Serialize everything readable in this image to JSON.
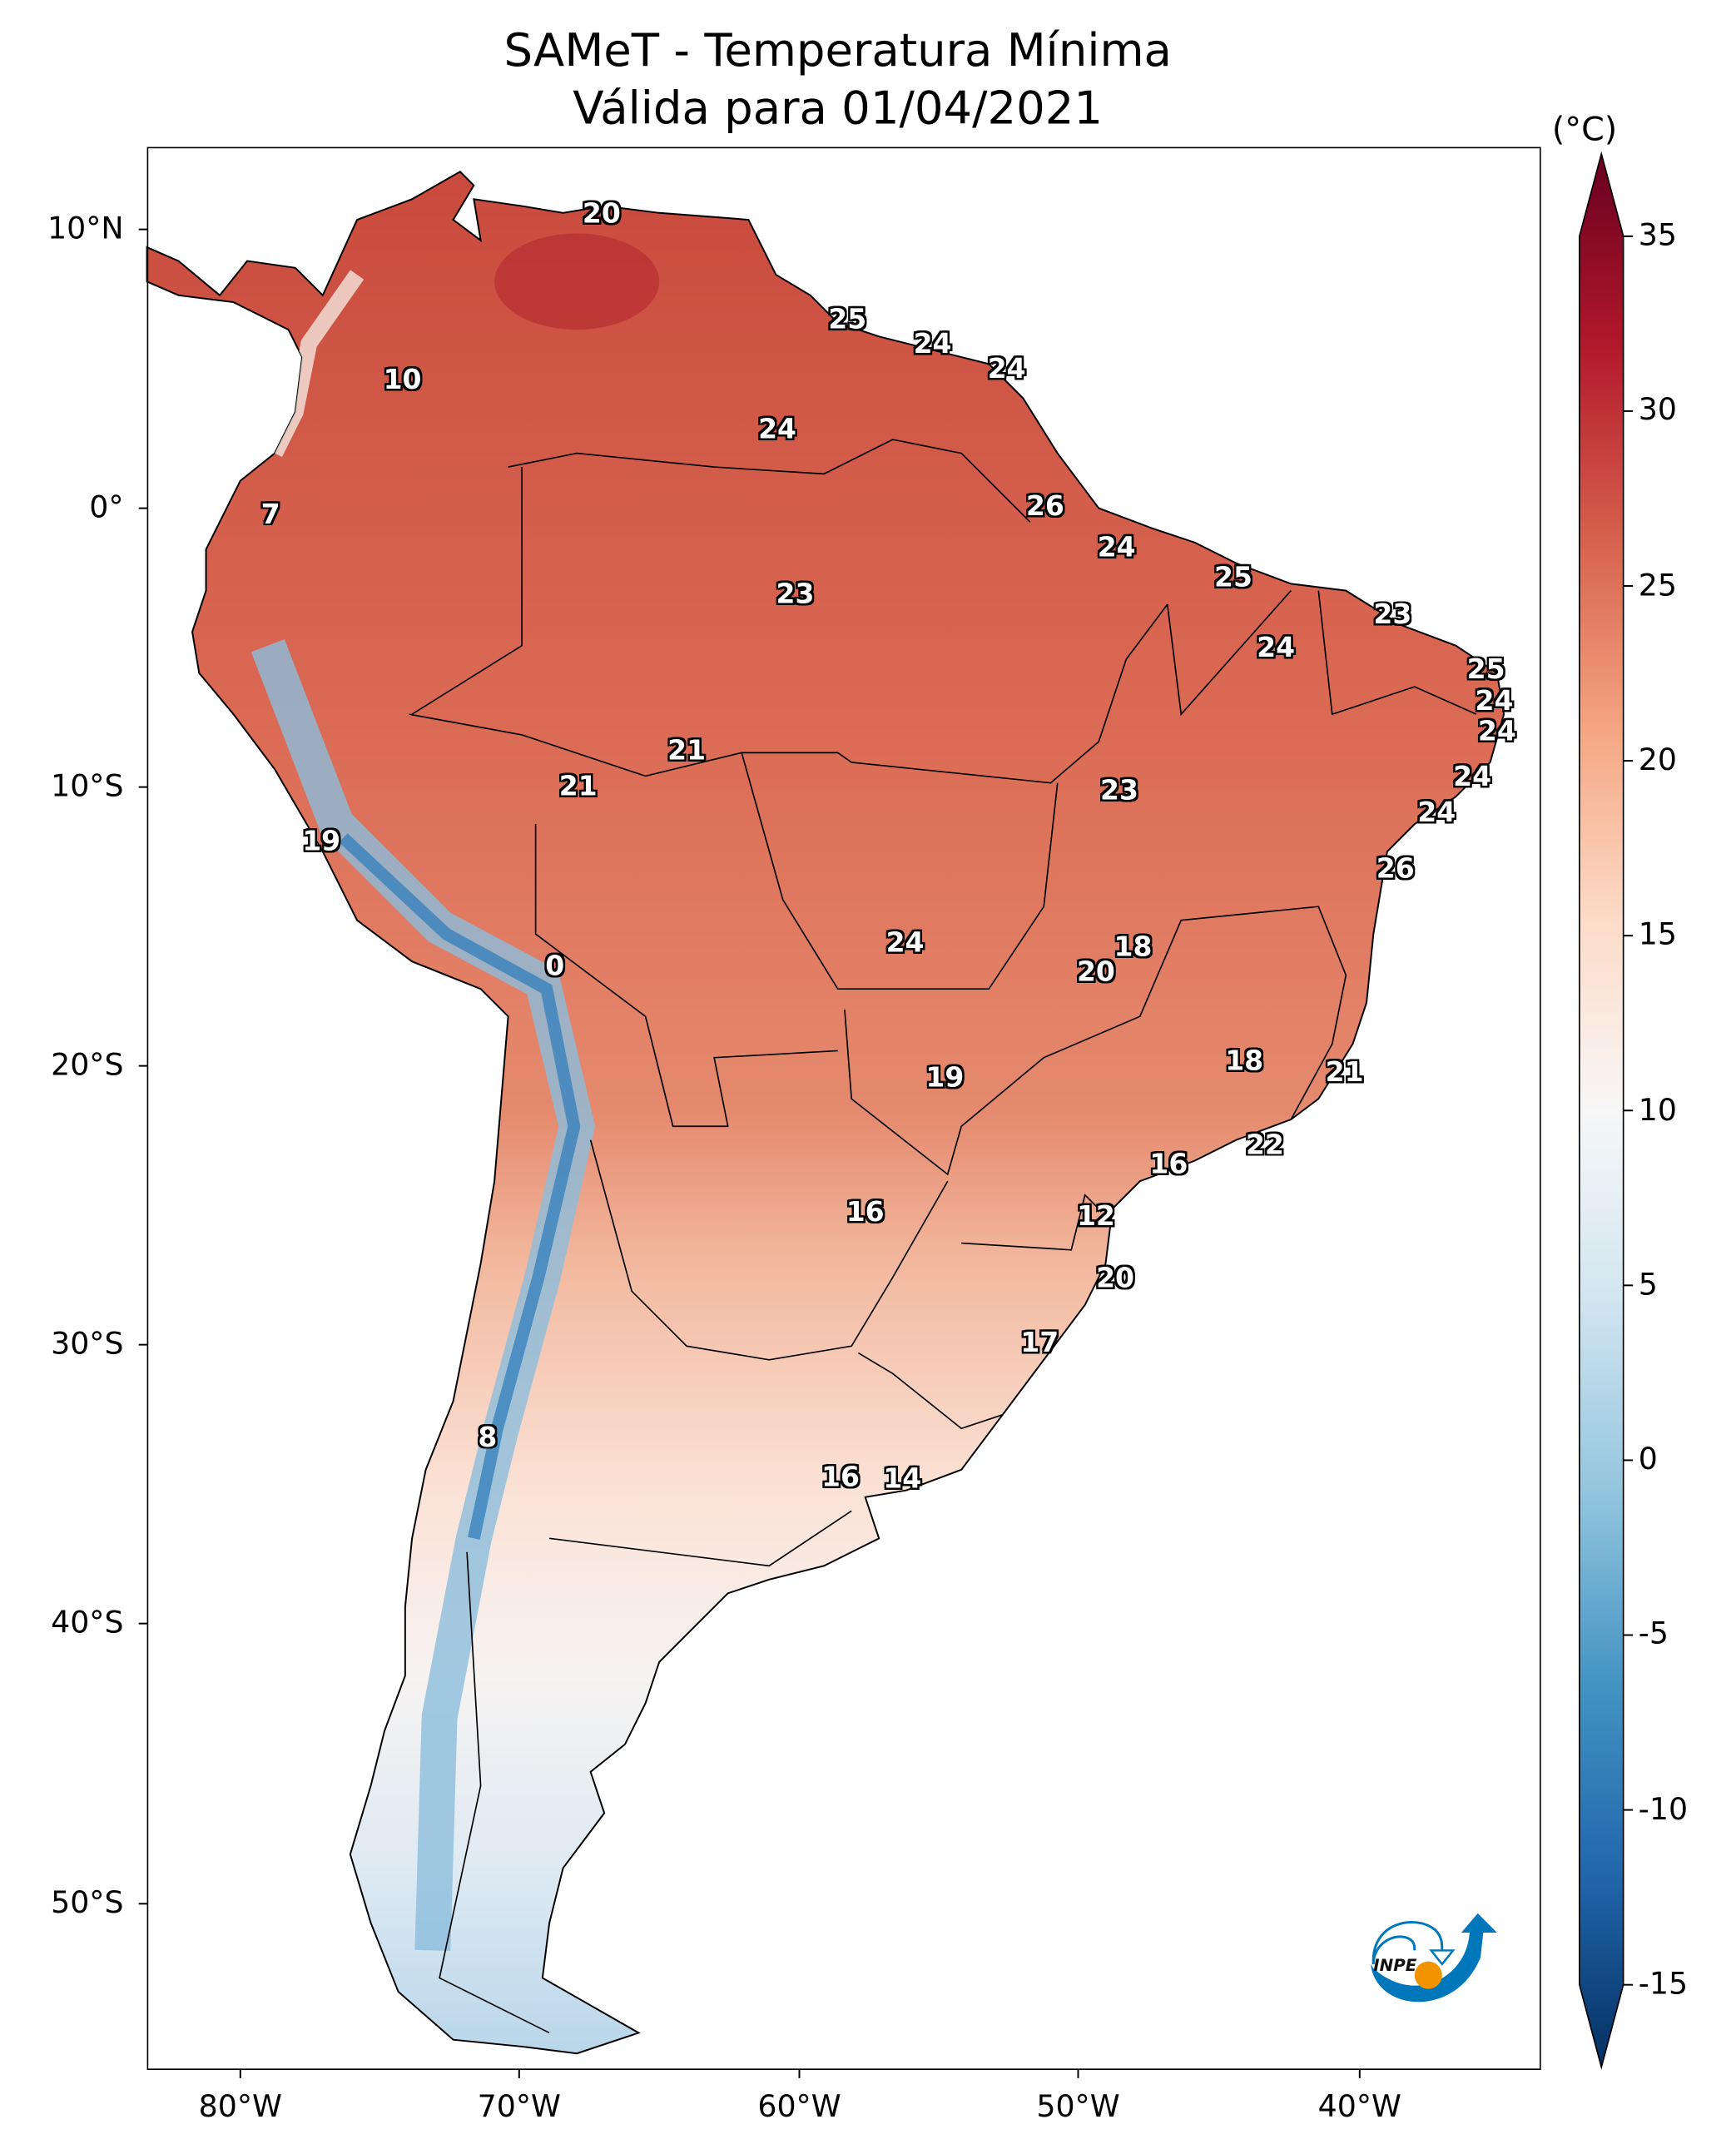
{
  "title": {
    "line1": "SAMeT - Temperatura Mínima",
    "line2": "Válida para 01/04/2021"
  },
  "colorbar": {
    "unit": "(°C)",
    "ticks": [
      "35",
      "30",
      "25",
      "20",
      "15",
      "10",
      "5",
      "0",
      "-5",
      "-10",
      "-15"
    ],
    "colormap": [
      "#67001f",
      "#b2182b",
      "#d6604d",
      "#f4a582",
      "#fddbc7",
      "#f7f7f7",
      "#d1e5f0",
      "#92c5de",
      "#4393c3",
      "#2166ac",
      "#053061"
    ]
  },
  "axes": {
    "lon_ticks": [
      "80°W",
      "70°W",
      "60°W",
      "50°W",
      "40°W"
    ],
    "lat_ticks": [
      "10°N",
      "0°",
      "10°S",
      "20°S",
      "30°S",
      "40°S",
      "50°S"
    ]
  },
  "stations": [
    "20",
    "25",
    "24",
    "24",
    "10",
    "24",
    "26",
    "7",
    "24",
    "25",
    "23",
    "23",
    "24",
    "25",
    "24",
    "24",
    "21",
    "24",
    "21",
    "23",
    "24",
    "19",
    "26",
    "24",
    "18",
    "0",
    "20",
    "18",
    "21",
    "19",
    "22",
    "16",
    "16",
    "12",
    "20",
    "17",
    "8",
    "16",
    "14"
  ],
  "logo": {
    "text": "INPE",
    "colors": {
      "blue": "#0077bb",
      "orange": "#f29400"
    }
  }
}
